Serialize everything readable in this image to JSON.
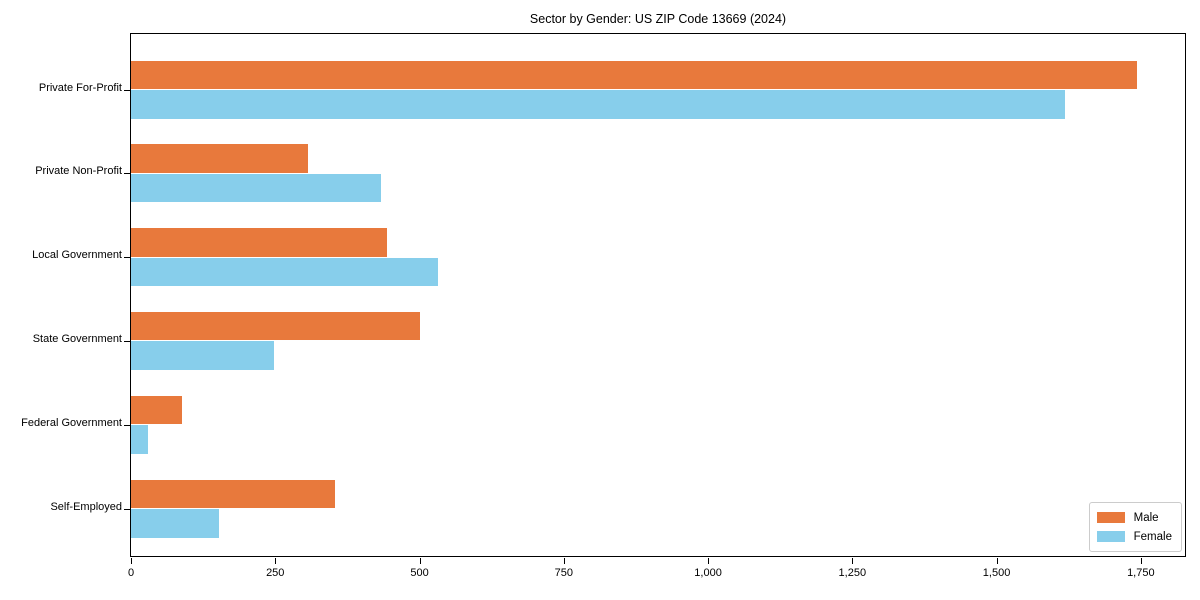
{
  "chart_data": {
    "type": "bar",
    "orientation": "horizontal",
    "title": "Sector by Gender: US ZIP Code 13669 (2024)",
    "categories": [
      "Private For-Profit",
      "Private Non-Profit",
      "Local Government",
      "State Government",
      "Federal Government",
      "Self-Employed"
    ],
    "series": [
      {
        "name": "Male",
        "color": "#e8793c",
        "values": [
          1743,
          306,
          444,
          500,
          89,
          353
        ]
      },
      {
        "name": "Female",
        "color": "#87ceeb",
        "values": [
          1618,
          433,
          532,
          248,
          30,
          152
        ]
      }
    ],
    "xlabel": "",
    "ylabel": "",
    "xlim": [
      0,
      1830
    ],
    "xticks": [
      0,
      250,
      500,
      750,
      1000,
      1250,
      1500,
      1750
    ],
    "xtick_labels": [
      "0",
      "250",
      "500",
      "750",
      "1,000",
      "1,250",
      "1,500",
      "1,750"
    ],
    "grid": false,
    "legend": {
      "position": "lower right",
      "entries": [
        "Male",
        "Female"
      ]
    }
  }
}
